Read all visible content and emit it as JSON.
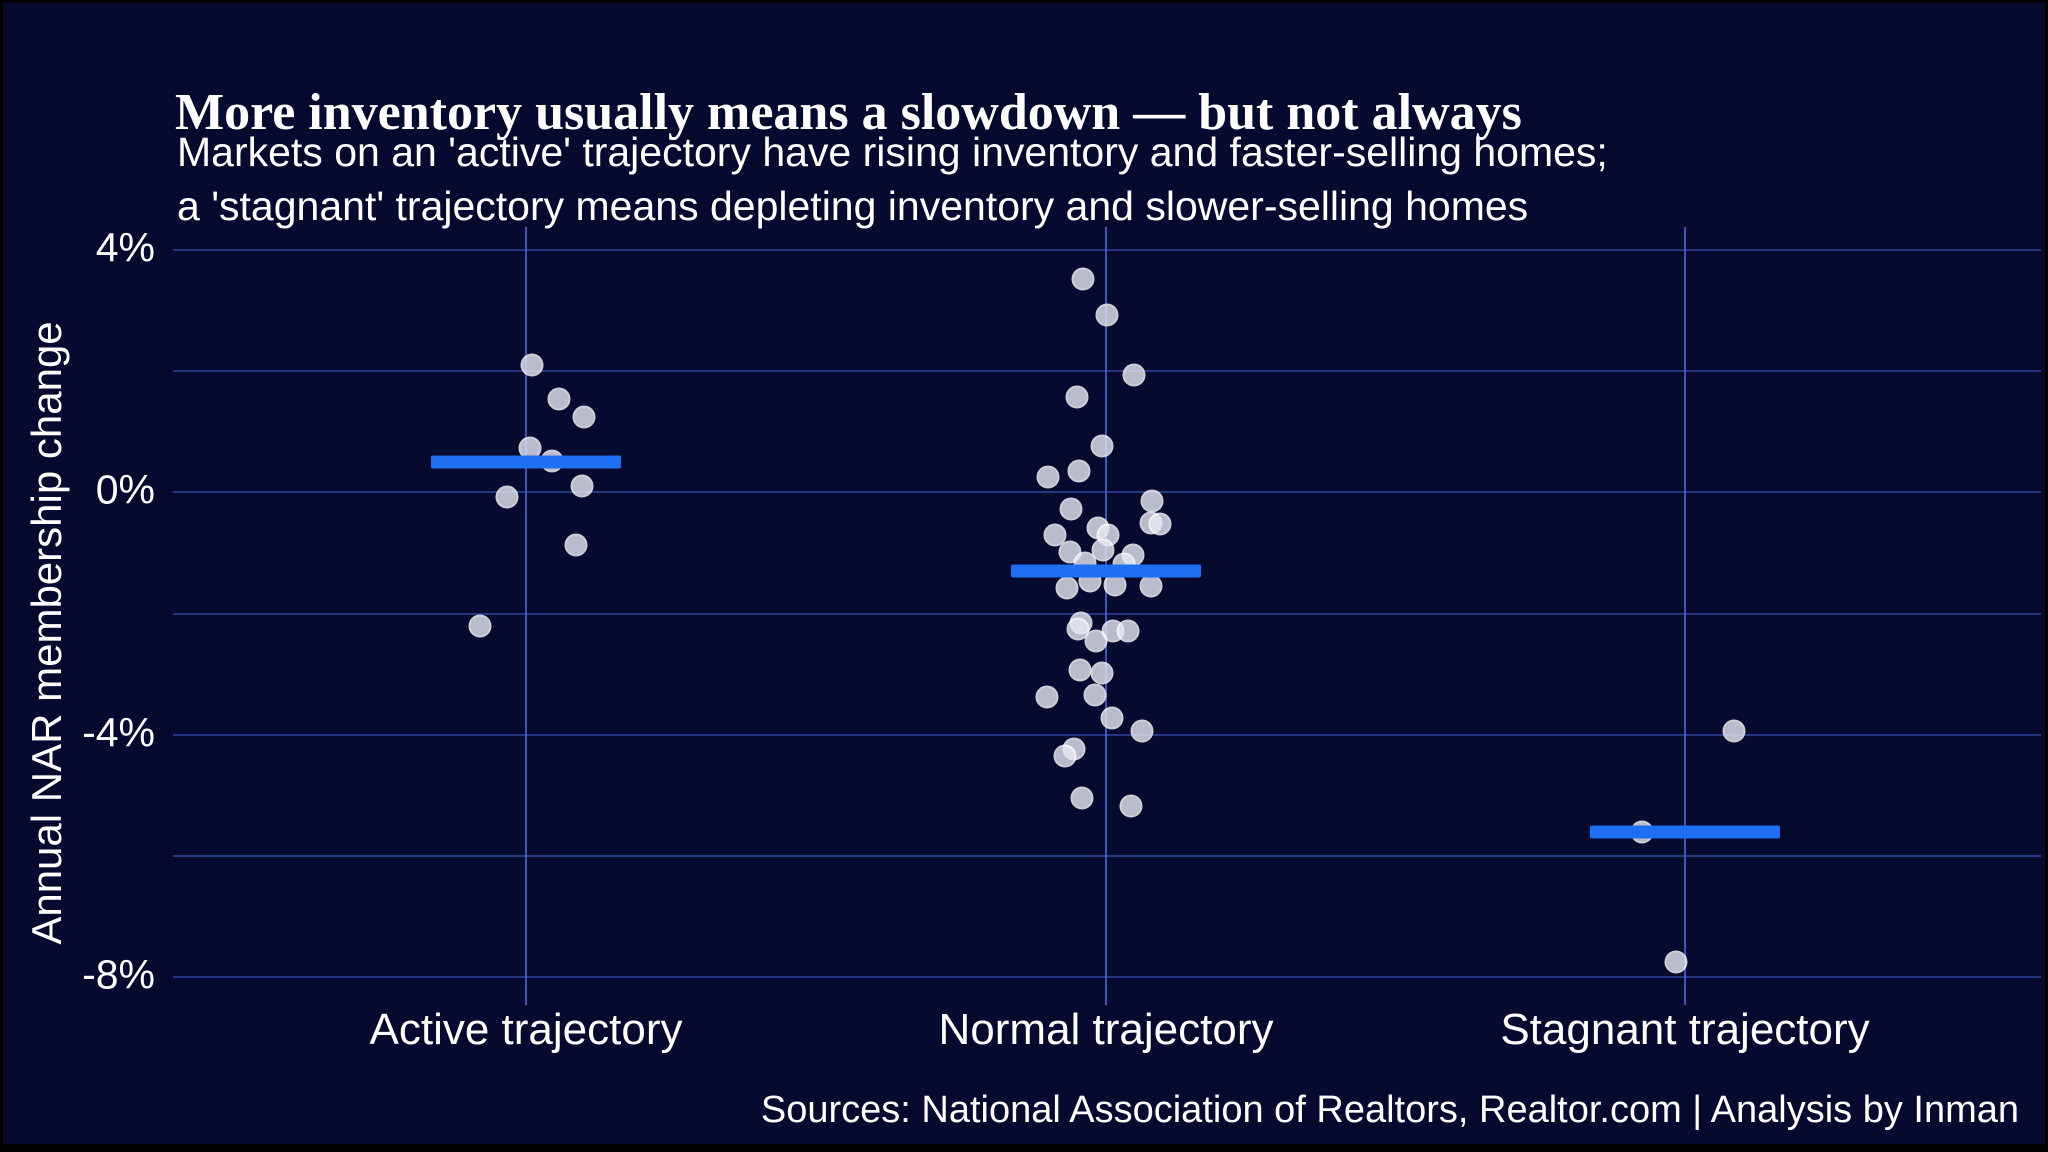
{
  "header": {
    "title": "More inventory usually means a slowdown — but not always",
    "subtitle_line1": "Markets on an 'active' trajectory have rising inventory and faster-selling homes;",
    "subtitle_line2": "a 'stagnant' trajectory means depleting inventory and slower-selling homes"
  },
  "footer": {
    "source": "Sources: National Association of Realtors, Realtor.com | Analysis by Inman"
  },
  "colors": {
    "background": "#050a2e",
    "text": "#ffffff",
    "grid_horizontal": "#32479e",
    "grid_vertical": "#4a63cf",
    "mean_line": "#1e6ff2",
    "dot_fill": "#e7e9f1",
    "dot_stroke": "#ffffff"
  },
  "chart_data": {
    "type": "scatter",
    "title": "More inventory usually means a slowdown — but not always",
    "subtitle": "Markets on an 'active' trajectory have rising inventory and faster-selling homes; a 'stagnant' trajectory means depleting inventory and slower-selling homes",
    "xlabel": "",
    "ylabel": "Annual NAR membership change",
    "ylim": [
      -8,
      4
    ],
    "grid": true,
    "gridline_values": [
      4,
      2,
      0,
      -2,
      -4,
      -6,
      -8
    ],
    "yticks": [
      {
        "value": 4,
        "label": "4%"
      },
      {
        "value": 0,
        "label": "0%"
      },
      {
        "value": -4,
        "label": "-4%"
      },
      {
        "value": -8,
        "label": "-8%"
      }
    ],
    "categories": [
      "Active trajectory",
      "Normal trajectory",
      "Stagnant trajectory"
    ],
    "legend": "none",
    "groups": [
      {
        "label": "Active trajectory",
        "mean": 0.5,
        "points": [
          {
            "dx": 6,
            "v": 2.11
          },
          {
            "dx": 33,
            "v": 1.54
          },
          {
            "dx": 58,
            "v": 1.24
          },
          {
            "dx": 4,
            "v": 0.74
          },
          {
            "dx": 26,
            "v": 0.51
          },
          {
            "dx": 56,
            "v": 0.1
          },
          {
            "dx": -19,
            "v": -0.07
          },
          {
            "dx": 50,
            "v": -0.87
          },
          {
            "dx": -46,
            "v": -2.21
          }
        ]
      },
      {
        "label": "Normal trajectory",
        "mean": -1.3,
        "points": [
          {
            "dx": -23,
            "v": 3.52
          },
          {
            "dx": 1,
            "v": 2.92
          },
          {
            "dx": 28,
            "v": 1.93
          },
          {
            "dx": -29,
            "v": 1.58
          },
          {
            "dx": -4,
            "v": 0.76
          },
          {
            "dx": -27,
            "v": 0.36
          },
          {
            "dx": -58,
            "v": 0.26
          },
          {
            "dx": 46,
            "v": -0.15
          },
          {
            "dx": -35,
            "v": -0.27
          },
          {
            "dx": 45,
            "v": -0.5
          },
          {
            "dx": 54,
            "v": -0.52
          },
          {
            "dx": -51,
            "v": -0.7
          },
          {
            "dx": -8,
            "v": -0.59
          },
          {
            "dx": 2,
            "v": -0.71
          },
          {
            "dx": -36,
            "v": -0.99
          },
          {
            "dx": -3,
            "v": -0.95
          },
          {
            "dx": 27,
            "v": -1.03
          },
          {
            "dx": -21,
            "v": -1.16
          },
          {
            "dx": 18,
            "v": -1.19
          },
          {
            "dx": -16,
            "v": -1.46
          },
          {
            "dx": 9,
            "v": -1.53
          },
          {
            "dx": 45,
            "v": -1.54
          },
          {
            "dx": -39,
            "v": -1.58
          },
          {
            "dx": -25,
            "v": -2.16
          },
          {
            "dx": -28,
            "v": -2.26
          },
          {
            "dx": 7,
            "v": -2.29
          },
          {
            "dx": 22,
            "v": -2.29
          },
          {
            "dx": -10,
            "v": -2.45
          },
          {
            "dx": -26,
            "v": -2.93
          },
          {
            "dx": -4,
            "v": -2.98
          },
          {
            "dx": -59,
            "v": -3.38
          },
          {
            "dx": -11,
            "v": -3.35
          },
          {
            "dx": 6,
            "v": -3.73
          },
          {
            "dx": 36,
            "v": -3.94
          },
          {
            "dx": -32,
            "v": -4.24
          },
          {
            "dx": -41,
            "v": -4.35
          },
          {
            "dx": -24,
            "v": -5.05
          },
          {
            "dx": 25,
            "v": -5.17
          }
        ]
      },
      {
        "label": "Stagnant trajectory",
        "mean": -5.6,
        "points": [
          {
            "dx": 49,
            "v": -3.94
          },
          {
            "dx": -43,
            "v": -5.61
          },
          {
            "dx": -9,
            "v": -7.76
          }
        ]
      }
    ]
  }
}
